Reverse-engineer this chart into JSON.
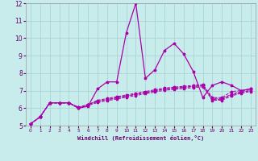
{
  "title": "",
  "xlabel": "Windchill (Refroidissement éolien,°C)",
  "bg_color": "#c8ecec",
  "grid_color": "#aad4d4",
  "line_color": "#aa00aa",
  "xlim": [
    -0.5,
    23.5
  ],
  "ylim": [
    5,
    12
  ],
  "yticks": [
    5,
    6,
    7,
    8,
    9,
    10,
    11,
    12
  ],
  "xticks": [
    0,
    1,
    2,
    3,
    4,
    5,
    6,
    7,
    8,
    9,
    10,
    11,
    12,
    13,
    14,
    15,
    16,
    17,
    18,
    19,
    20,
    21,
    22,
    23
  ],
  "series": [
    [
      5.1,
      5.5,
      6.3,
      6.3,
      6.3,
      6.0,
      6.1,
      7.1,
      7.5,
      7.5,
      10.3,
      12.0,
      7.7,
      8.2,
      9.3,
      9.7,
      9.1,
      8.1,
      6.6,
      7.3,
      7.5,
      7.3,
      7.0,
      7.1
    ],
    [
      5.1,
      5.5,
      6.3,
      6.3,
      6.3,
      6.05,
      6.2,
      6.45,
      6.55,
      6.65,
      6.75,
      6.85,
      6.95,
      7.05,
      7.15,
      7.2,
      7.25,
      7.3,
      7.35,
      6.6,
      6.6,
      6.95,
      7.0,
      7.1
    ],
    [
      5.1,
      5.5,
      6.3,
      6.3,
      6.3,
      6.05,
      6.2,
      6.4,
      6.5,
      6.6,
      6.7,
      6.8,
      6.9,
      7.0,
      7.1,
      7.15,
      7.2,
      7.25,
      7.3,
      6.55,
      6.55,
      6.8,
      6.95,
      7.05
    ],
    [
      5.1,
      5.5,
      6.3,
      6.3,
      6.3,
      6.0,
      6.2,
      6.38,
      6.48,
      6.58,
      6.68,
      6.78,
      6.88,
      6.98,
      7.08,
      7.13,
      7.18,
      7.23,
      7.28,
      6.5,
      6.5,
      6.75,
      6.9,
      7.0
    ],
    [
      5.1,
      5.5,
      6.3,
      6.3,
      6.3,
      6.0,
      6.15,
      6.32,
      6.42,
      6.52,
      6.62,
      6.72,
      6.82,
      6.92,
      7.02,
      7.07,
      7.12,
      7.17,
      7.22,
      6.45,
      6.45,
      6.7,
      6.85,
      6.95
    ]
  ]
}
